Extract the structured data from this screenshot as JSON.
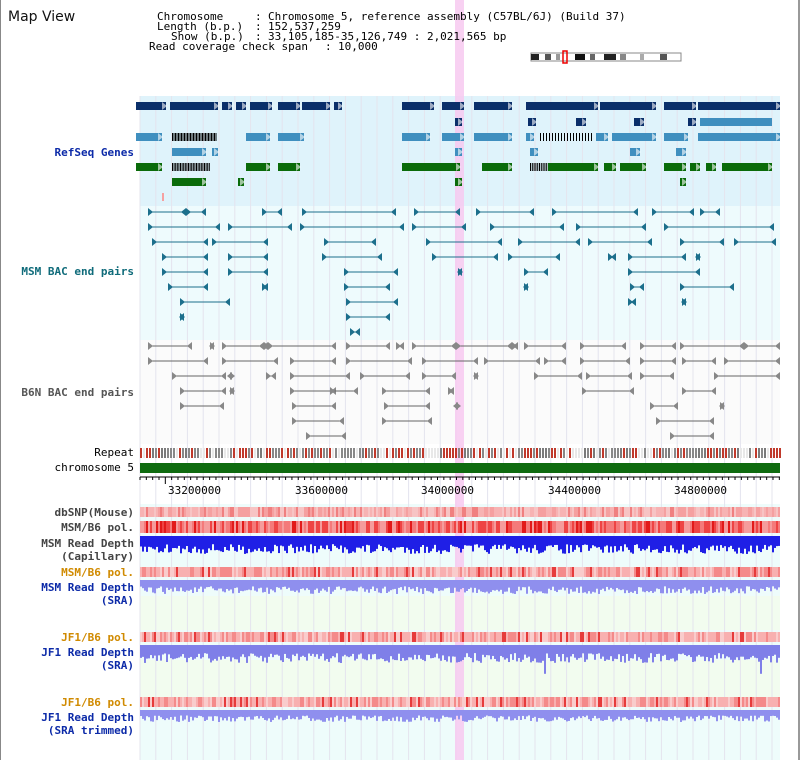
{
  "page_title": "Map View",
  "header": {
    "chromosome_key": "Chromosome",
    "chromosome_value": "Chromosome 5, reference assembly (C57BL/6J) (Build 37)",
    "length_key": "Length (b.p.)",
    "length_value": "152,537,259",
    "show_key": "Show (b.p.)",
    "show_value": "33,105,185-35,126,749 : 2,021,565 bp",
    "coverage_key": "Read coverage check span",
    "coverage_value": "10,000"
  },
  "tracks": {
    "refseq": "RefSeq Genes",
    "msm_bac": "MSM BAC end pairs",
    "b6n_bac": "B6N BAC end pairs",
    "repeat": "Repeat",
    "chromosome": "chromosome 5",
    "dbsnp": "dbSNP(Mouse)",
    "msm_b6_pol": "MSM/B6 pol.",
    "msm_depth_cap_1": "MSM Read Depth",
    "msm_depth_cap_2": "(Capillary)",
    "msm_b6_pol_2": "MSM/B6 pol.",
    "msm_depth_sra_1": "MSM Read Depth",
    "msm_depth_sra_2": "(SRA)",
    "jf1_b6_pol": "JF1/B6 pol.",
    "jf1_depth_sra_1": "JF1 Read Depth",
    "jf1_depth_sra_2": "(SRA)",
    "jf1_b6_pol_2": "JF1/B6 pol.",
    "jf1_depth_trim_1": "JF1 Read Depth",
    "jf1_depth_trim_2": "(SRA trimmed)"
  },
  "axis_ticks": [
    "33200000",
    "33600000",
    "34000000",
    "34400000",
    "34800000"
  ],
  "colors": {
    "refseq_dark": "#0a2f6a",
    "refseq_mid": "#3f8fbf",
    "refseq_green": "#0a6b0a",
    "msm_bac": "#1c6f8c",
    "b6n_bac": "#666666",
    "chromosome": "#0f6b0f",
    "depth_blue": "#2a2ae0",
    "depth_light": "#8a8aea",
    "label_blue": "#0c2aa8",
    "label_teal": "#0f6b7a",
    "label_orange": "#d08a00",
    "highlight": "#f7c9f0"
  }
}
